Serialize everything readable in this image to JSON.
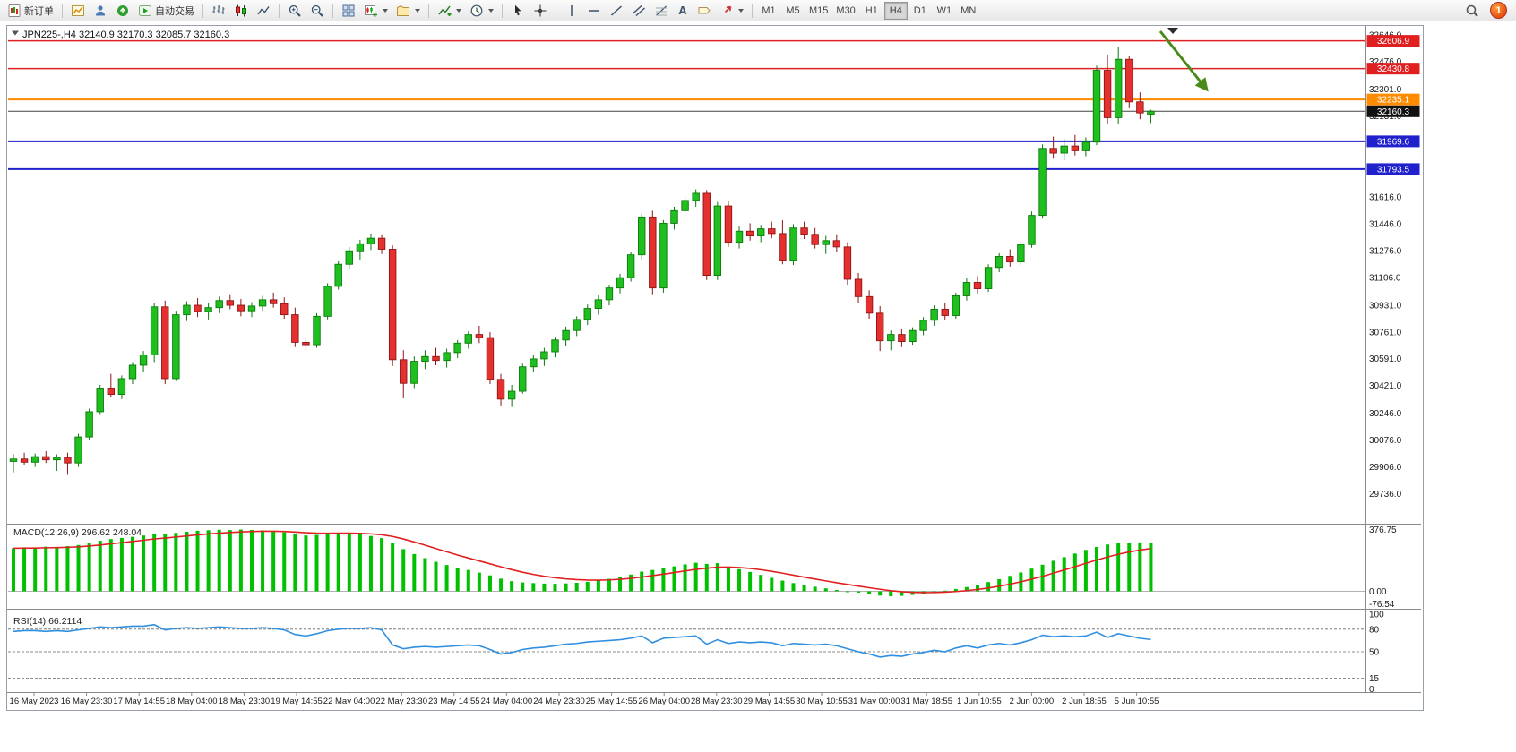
{
  "toolbar": {
    "new_order_label": "新订单",
    "autotrading_label": "自动交易",
    "text_tool_label": "A",
    "timeframes": [
      "M1",
      "M5",
      "M15",
      "M30",
      "H1",
      "H4",
      "D1",
      "W1",
      "MN"
    ],
    "active_timeframe": "H4",
    "notification_count": "1"
  },
  "chart_data": {
    "type": "candlestick",
    "symbol": "JPN225-",
    "timeframe": "H4",
    "ohlc_header_text": "JPN225-,H4 32140.9 32170.3 32085.7 32160.3",
    "ohlc": {
      "open": 32140.9,
      "high": 32170.3,
      "low": 32085.7,
      "close": 32160.3
    },
    "colors": {
      "bull_fill": "#1fbf1f",
      "bull_stroke": "#0b7a0b",
      "bear_fill": "#e53030",
      "bear_stroke": "#8f1414",
      "histogram": "#00c000",
      "signal_line": "#e02020",
      "rsi_line": "#2f8fe0",
      "hline_red": "#e02020",
      "hline_orange": "#ff8c00",
      "hline_blue": "#2020cc",
      "arrow_green": "#4a8a1a"
    },
    "price_axis": {
      "min": 29545,
      "max": 32690,
      "labels": [
        32646.0,
        32476.0,
        32301.0,
        32131.0,
        31961.0,
        31791.0,
        31616.0,
        31446.0,
        31276.0,
        31106.0,
        30931.0,
        30761.0,
        30591.0,
        30421.0,
        30246.0,
        30076.0,
        29906.0,
        29736.0
      ]
    },
    "horizontal_lines": [
      {
        "price": 32606.9,
        "label": "32606.9",
        "color": "#e02020",
        "width": 1.5
      },
      {
        "price": 32430.8,
        "label": "32430.8",
        "color": "#e02020",
        "width": 1.5
      },
      {
        "price": 32235.1,
        "label": "32235.1",
        "color": "#ff8c00",
        "width": 2
      },
      {
        "price": 31969.6,
        "label": "31969.6",
        "color": "#2020cc",
        "width": 2
      },
      {
        "price": 31793.5,
        "label": "31793.5",
        "color": "#2020cc",
        "width": 2
      }
    ],
    "current_price": {
      "value": 32160.3,
      "label": "32160.3",
      "badge_color": "#111111"
    },
    "candles": [
      [
        29940,
        29985,
        29870,
        29955
      ],
      [
        29955,
        29995,
        29920,
        29935
      ],
      [
        29935,
        29990,
        29905,
        29970
      ],
      [
        29970,
        30005,
        29930,
        29950
      ],
      [
        29950,
        29985,
        29880,
        29965
      ],
      [
        29965,
        29995,
        29855,
        29930
      ],
      [
        29930,
        30115,
        29905,
        30095
      ],
      [
        30095,
        30275,
        30075,
        30255
      ],
      [
        30255,
        30425,
        30235,
        30405
      ],
      [
        30405,
        30495,
        30345,
        30365
      ],
      [
        30365,
        30485,
        30335,
        30465
      ],
      [
        30465,
        30570,
        30430,
        30550
      ],
      [
        30550,
        30640,
        30505,
        30615
      ],
      [
        30615,
        30945,
        30570,
        30920
      ],
      [
        30920,
        30960,
        30430,
        30465
      ],
      [
        30465,
        30895,
        30450,
        30870
      ],
      [
        30870,
        30955,
        30830,
        30930
      ],
      [
        30930,
        30975,
        30855,
        30890
      ],
      [
        30890,
        30945,
        30840,
        30915
      ],
      [
        30915,
        30985,
        30880,
        30960
      ],
      [
        30960,
        31000,
        30905,
        30930
      ],
      [
        30930,
        30970,
        30860,
        30895
      ],
      [
        30895,
        30950,
        30855,
        30925
      ],
      [
        30925,
        30990,
        30895,
        30965
      ],
      [
        30965,
        31010,
        30915,
        30940
      ],
      [
        30940,
        30980,
        30845,
        30870
      ],
      [
        30870,
        30915,
        30665,
        30695
      ],
      [
        30695,
        30730,
        30640,
        30680
      ],
      [
        30680,
        30880,
        30660,
        30860
      ],
      [
        30860,
        31070,
        30840,
        31050
      ],
      [
        31050,
        31210,
        31030,
        31190
      ],
      [
        31190,
        31300,
        31160,
        31275
      ],
      [
        31275,
        31345,
        31220,
        31320
      ],
      [
        31320,
        31385,
        31280,
        31355
      ],
      [
        31355,
        31380,
        31255,
        31285
      ],
      [
        31285,
        31310,
        30545,
        30585
      ],
      [
        30585,
        30645,
        30340,
        30435
      ],
      [
        30435,
        30605,
        30405,
        30575
      ],
      [
        30575,
        30645,
        30525,
        30605
      ],
      [
        30605,
        30660,
        30550,
        30580
      ],
      [
        30580,
        30655,
        30535,
        30630
      ],
      [
        30630,
        30710,
        30595,
        30690
      ],
      [
        30690,
        30765,
        30655,
        30745
      ],
      [
        30745,
        30800,
        30690,
        30725
      ],
      [
        30725,
        30760,
        30430,
        30460
      ],
      [
        30460,
        30495,
        30295,
        30335
      ],
      [
        30335,
        30425,
        30285,
        30385
      ],
      [
        30385,
        30560,
        30370,
        30540
      ],
      [
        30540,
        30615,
        30505,
        30590
      ],
      [
        30590,
        30660,
        30545,
        30635
      ],
      [
        30635,
        30730,
        30600,
        30710
      ],
      [
        30710,
        30795,
        30675,
        30770
      ],
      [
        30770,
        30860,
        30735,
        30840
      ],
      [
        30840,
        30935,
        30805,
        30910
      ],
      [
        30910,
        30995,
        30870,
        30965
      ],
      [
        30965,
        31060,
        30930,
        31040
      ],
      [
        31040,
        31130,
        31005,
        31105
      ],
      [
        31105,
        31270,
        31080,
        31250
      ],
      [
        31250,
        31510,
        31220,
        31490
      ],
      [
        31490,
        31530,
        31000,
        31040
      ],
      [
        31040,
        31470,
        31010,
        31450
      ],
      [
        31450,
        31555,
        31410,
        31530
      ],
      [
        31530,
        31615,
        31490,
        31595
      ],
      [
        31595,
        31665,
        31555,
        31640
      ],
      [
        31640,
        31660,
        31090,
        31120
      ],
      [
        31120,
        31585,
        31090,
        31560
      ],
      [
        31560,
        31590,
        31300,
        31330
      ],
      [
        31330,
        31430,
        31290,
        31400
      ],
      [
        31400,
        31450,
        31340,
        31370
      ],
      [
        31370,
        31440,
        31330,
        31415
      ],
      [
        31415,
        31460,
        31355,
        31385
      ],
      [
        31385,
        31470,
        31190,
        31215
      ],
      [
        31215,
        31445,
        31185,
        31420
      ],
      [
        31420,
        31460,
        31350,
        31380
      ],
      [
        31380,
        31420,
        31290,
        31315
      ],
      [
        31315,
        31370,
        31255,
        31340
      ],
      [
        31340,
        31380,
        31270,
        31300
      ],
      [
        31300,
        31330,
        31060,
        31095
      ],
      [
        31095,
        31135,
        30945,
        30985
      ],
      [
        30985,
        31025,
        30845,
        30880
      ],
      [
        30880,
        30925,
        30640,
        30705
      ],
      [
        30705,
        30770,
        30645,
        30745
      ],
      [
        30745,
        30780,
        30665,
        30700
      ],
      [
        30700,
        30790,
        30680,
        30770
      ],
      [
        30770,
        30855,
        30740,
        30835
      ],
      [
        30835,
        30930,
        30800,
        30905
      ],
      [
        30905,
        30945,
        30835,
        30865
      ],
      [
        30865,
        31010,
        30845,
        30990
      ],
      [
        30990,
        31100,
        30960,
        31075
      ],
      [
        31075,
        31115,
        31005,
        31035
      ],
      [
        31035,
        31190,
        31015,
        31170
      ],
      [
        31170,
        31260,
        31140,
        31240
      ],
      [
        31240,
        31285,
        31175,
        31205
      ],
      [
        31205,
        31335,
        31185,
        31315
      ],
      [
        31315,
        31525,
        31295,
        31500
      ],
      [
        31500,
        31950,
        31480,
        31925
      ],
      [
        31925,
        32000,
        31860,
        31895
      ],
      [
        31895,
        31985,
        31850,
        31940
      ],
      [
        31940,
        32010,
        31880,
        31910
      ],
      [
        31910,
        31995,
        31875,
        31965
      ],
      [
        31965,
        32450,
        31945,
        32420
      ],
      [
        32420,
        32520,
        32080,
        32120
      ],
      [
        32120,
        32570,
        32080,
        32490
      ],
      [
        32490,
        32510,
        32180,
        32220
      ],
      [
        32220,
        32280,
        32110,
        32150
      ],
      [
        32140.9,
        32170.3,
        32085.7,
        32160.3
      ]
    ],
    "time_labels": [
      "16 May 2023",
      "16 May 23:30",
      "17 May 14:55",
      "18 May 04:00",
      "18 May 23:30",
      "19 May 14:55",
      "22 May 04:00",
      "22 May 23:30",
      "23 May 14:55",
      "24 May 04:00",
      "24 May 23:30",
      "25 May 14:55",
      "26 May 04:00",
      "28 May 23:30",
      "29 May 14:55",
      "30 May 10:55",
      "31 May 00:00",
      "31 May 18:55",
      "1 Jun 10:55",
      "2 Jun 00:00",
      "2 Jun 18:55",
      "5 Jun 10:55"
    ],
    "macd": {
      "label": "MACD(12,26,9) 296.62 248.04",
      "macd_value": 296.62,
      "signal_value": 248.04,
      "scale_labels": [
        {
          "value": 376.75,
          "text": "376.75"
        },
        {
          "value": 0,
          "text": "0.00"
        },
        {
          "value": -76.54,
          "text": "-76.54"
        }
      ],
      "histogram": [
        262,
        268,
        265,
        272,
        270,
        275,
        282,
        295,
        308,
        318,
        325,
        332,
        340,
        352,
        346,
        356,
        363,
        369,
        372,
        375,
        373,
        376,
        374,
        371,
        366,
        359,
        349,
        340,
        344,
        352,
        357,
        354,
        347,
        337,
        324,
        292,
        257,
        227,
        202,
        180,
        160,
        144,
        130,
        114,
        97,
        77,
        62,
        54,
        50,
        47,
        46,
        48,
        52,
        58,
        66,
        76,
        88,
        102,
        120,
        130,
        140,
        152,
        164,
        174,
        167,
        172,
        150,
        135,
        118,
        100,
        82,
        65,
        50,
        38,
        28,
        18,
        8,
        0,
        -8,
        -18,
        -26,
        -30,
        -28,
        -22,
        -14,
        -6,
        4,
        14,
        26,
        40,
        56,
        74,
        94,
        115,
        138,
        162,
        186,
        208,
        230,
        252,
        270,
        285,
        292,
        296,
        298,
        296.6
      ]
    },
    "rsi": {
      "label": "RSI(14) 66.2114",
      "value": 66.2114,
      "scale_labels": [
        100,
        80,
        50,
        15,
        0
      ],
      "levels": [
        80,
        50,
        15
      ],
      "values": [
        77,
        78,
        78,
        77,
        78,
        77,
        79,
        81,
        83,
        82,
        83,
        84,
        84,
        86,
        79,
        81,
        82,
        81,
        82,
        83,
        82,
        81,
        81,
        82,
        81,
        79,
        73,
        71,
        74,
        78,
        80,
        81,
        81,
        82,
        79,
        59,
        54,
        56,
        57,
        56,
        57,
        58,
        59,
        58,
        53,
        47,
        49,
        53,
        55,
        56,
        58,
        60,
        61,
        63,
        64,
        65,
        66,
        68,
        71,
        62,
        68,
        69,
        70,
        71,
        60,
        66,
        61,
        63,
        62,
        63,
        62,
        58,
        61,
        60,
        59,
        60,
        58,
        54,
        50,
        47,
        43,
        45,
        44,
        47,
        49,
        52,
        50,
        55,
        58,
        55,
        59,
        61,
        59,
        62,
        66,
        72,
        70,
        71,
        70,
        71,
        76,
        69,
        74,
        71,
        68,
        66.21
      ]
    },
    "annotations": {
      "arrow": {
        "color": "#4a8a1a"
      }
    }
  }
}
